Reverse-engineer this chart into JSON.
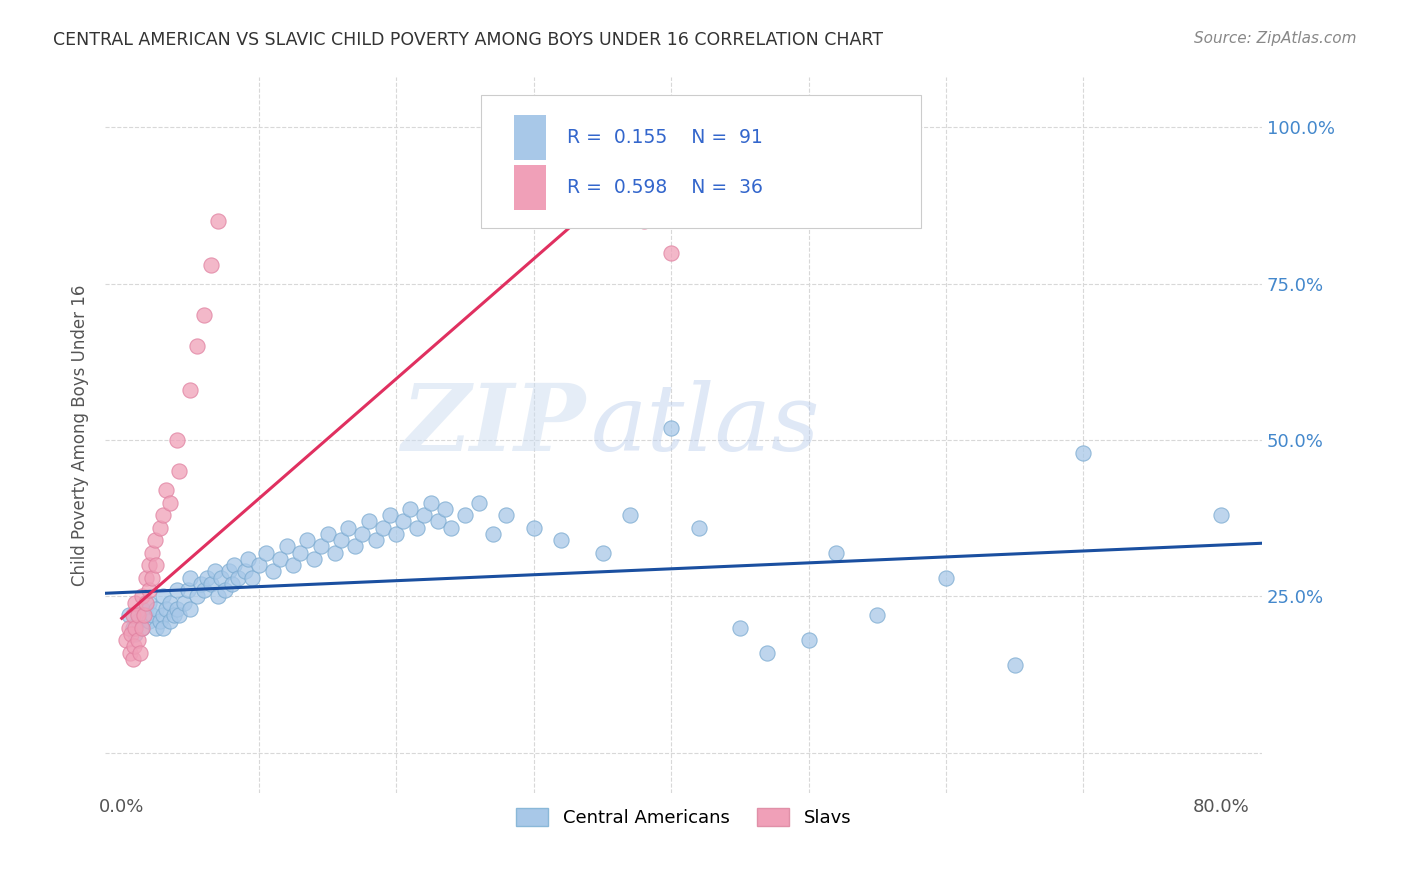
{
  "title": "CENTRAL AMERICAN VS SLAVIC CHILD POVERTY AMONG BOYS UNDER 16 CORRELATION CHART",
  "source": "Source: ZipAtlas.com",
  "ylabel": "Child Poverty Among Boys Under 16",
  "xlim": [
    -0.012,
    0.83
  ],
  "ylim": [
    -0.065,
    1.08
  ],
  "color_central": "#a8c8e8",
  "color_slavic": "#f0a0b8",
  "line_color_central": "#1a4fa0",
  "line_color_slavic": "#e03060",
  "watermark_zip": "ZIP",
  "watermark_atlas": "atlas",
  "background_color": "#ffffff",
  "grid_color": "#d8d8d8",
  "ca_x": [
    0.005,
    0.008,
    0.01,
    0.012,
    0.015,
    0.015,
    0.018,
    0.02,
    0.02,
    0.022,
    0.025,
    0.025,
    0.028,
    0.03,
    0.03,
    0.03,
    0.032,
    0.035,
    0.035,
    0.038,
    0.04,
    0.04,
    0.042,
    0.045,
    0.048,
    0.05,
    0.05,
    0.055,
    0.058,
    0.06,
    0.062,
    0.065,
    0.068,
    0.07,
    0.072,
    0.075,
    0.078,
    0.08,
    0.082,
    0.085,
    0.09,
    0.092,
    0.095,
    0.1,
    0.105,
    0.11,
    0.115,
    0.12,
    0.125,
    0.13,
    0.135,
    0.14,
    0.145,
    0.15,
    0.155,
    0.16,
    0.165,
    0.17,
    0.175,
    0.18,
    0.185,
    0.19,
    0.195,
    0.2,
    0.205,
    0.21,
    0.215,
    0.22,
    0.225,
    0.23,
    0.235,
    0.24,
    0.25,
    0.26,
    0.27,
    0.28,
    0.3,
    0.32,
    0.35,
    0.37,
    0.4,
    0.42,
    0.45,
    0.47,
    0.5,
    0.52,
    0.55,
    0.6,
    0.65,
    0.7,
    0.8
  ],
  "ca_y": [
    0.22,
    0.2,
    0.19,
    0.21,
    0.23,
    0.2,
    0.22,
    0.21,
    0.24,
    0.22,
    0.2,
    0.23,
    0.21,
    0.22,
    0.2,
    0.25,
    0.23,
    0.21,
    0.24,
    0.22,
    0.23,
    0.26,
    0.22,
    0.24,
    0.26,
    0.23,
    0.28,
    0.25,
    0.27,
    0.26,
    0.28,
    0.27,
    0.29,
    0.25,
    0.28,
    0.26,
    0.29,
    0.27,
    0.3,
    0.28,
    0.29,
    0.31,
    0.28,
    0.3,
    0.32,
    0.29,
    0.31,
    0.33,
    0.3,
    0.32,
    0.34,
    0.31,
    0.33,
    0.35,
    0.32,
    0.34,
    0.36,
    0.33,
    0.35,
    0.37,
    0.34,
    0.36,
    0.38,
    0.35,
    0.37,
    0.39,
    0.36,
    0.38,
    0.4,
    0.37,
    0.39,
    0.36,
    0.38,
    0.4,
    0.35,
    0.38,
    0.36,
    0.34,
    0.32,
    0.38,
    0.52,
    0.36,
    0.2,
    0.16,
    0.18,
    0.32,
    0.22,
    0.28,
    0.14,
    0.48,
    0.38
  ],
  "sl_x": [
    0.003,
    0.005,
    0.006,
    0.007,
    0.008,
    0.008,
    0.009,
    0.01,
    0.01,
    0.012,
    0.012,
    0.013,
    0.015,
    0.015,
    0.016,
    0.018,
    0.018,
    0.02,
    0.02,
    0.022,
    0.022,
    0.024,
    0.025,
    0.028,
    0.03,
    0.032,
    0.035,
    0.04,
    0.042,
    0.05,
    0.055,
    0.06,
    0.065,
    0.07,
    0.38,
    0.4
  ],
  "sl_y": [
    0.18,
    0.2,
    0.16,
    0.19,
    0.15,
    0.22,
    0.17,
    0.2,
    0.24,
    0.18,
    0.22,
    0.16,
    0.2,
    0.25,
    0.22,
    0.28,
    0.24,
    0.3,
    0.26,
    0.32,
    0.28,
    0.34,
    0.3,
    0.36,
    0.38,
    0.42,
    0.4,
    0.5,
    0.45,
    0.58,
    0.65,
    0.7,
    0.78,
    0.85,
    0.85,
    0.8
  ],
  "ca_trend_x": [
    -0.012,
    0.83
  ],
  "ca_trend_y": [
    0.255,
    0.335
  ],
  "sl_trend_x": [
    0.0,
    0.42
  ],
  "sl_trend_y": [
    0.215,
    1.02
  ]
}
